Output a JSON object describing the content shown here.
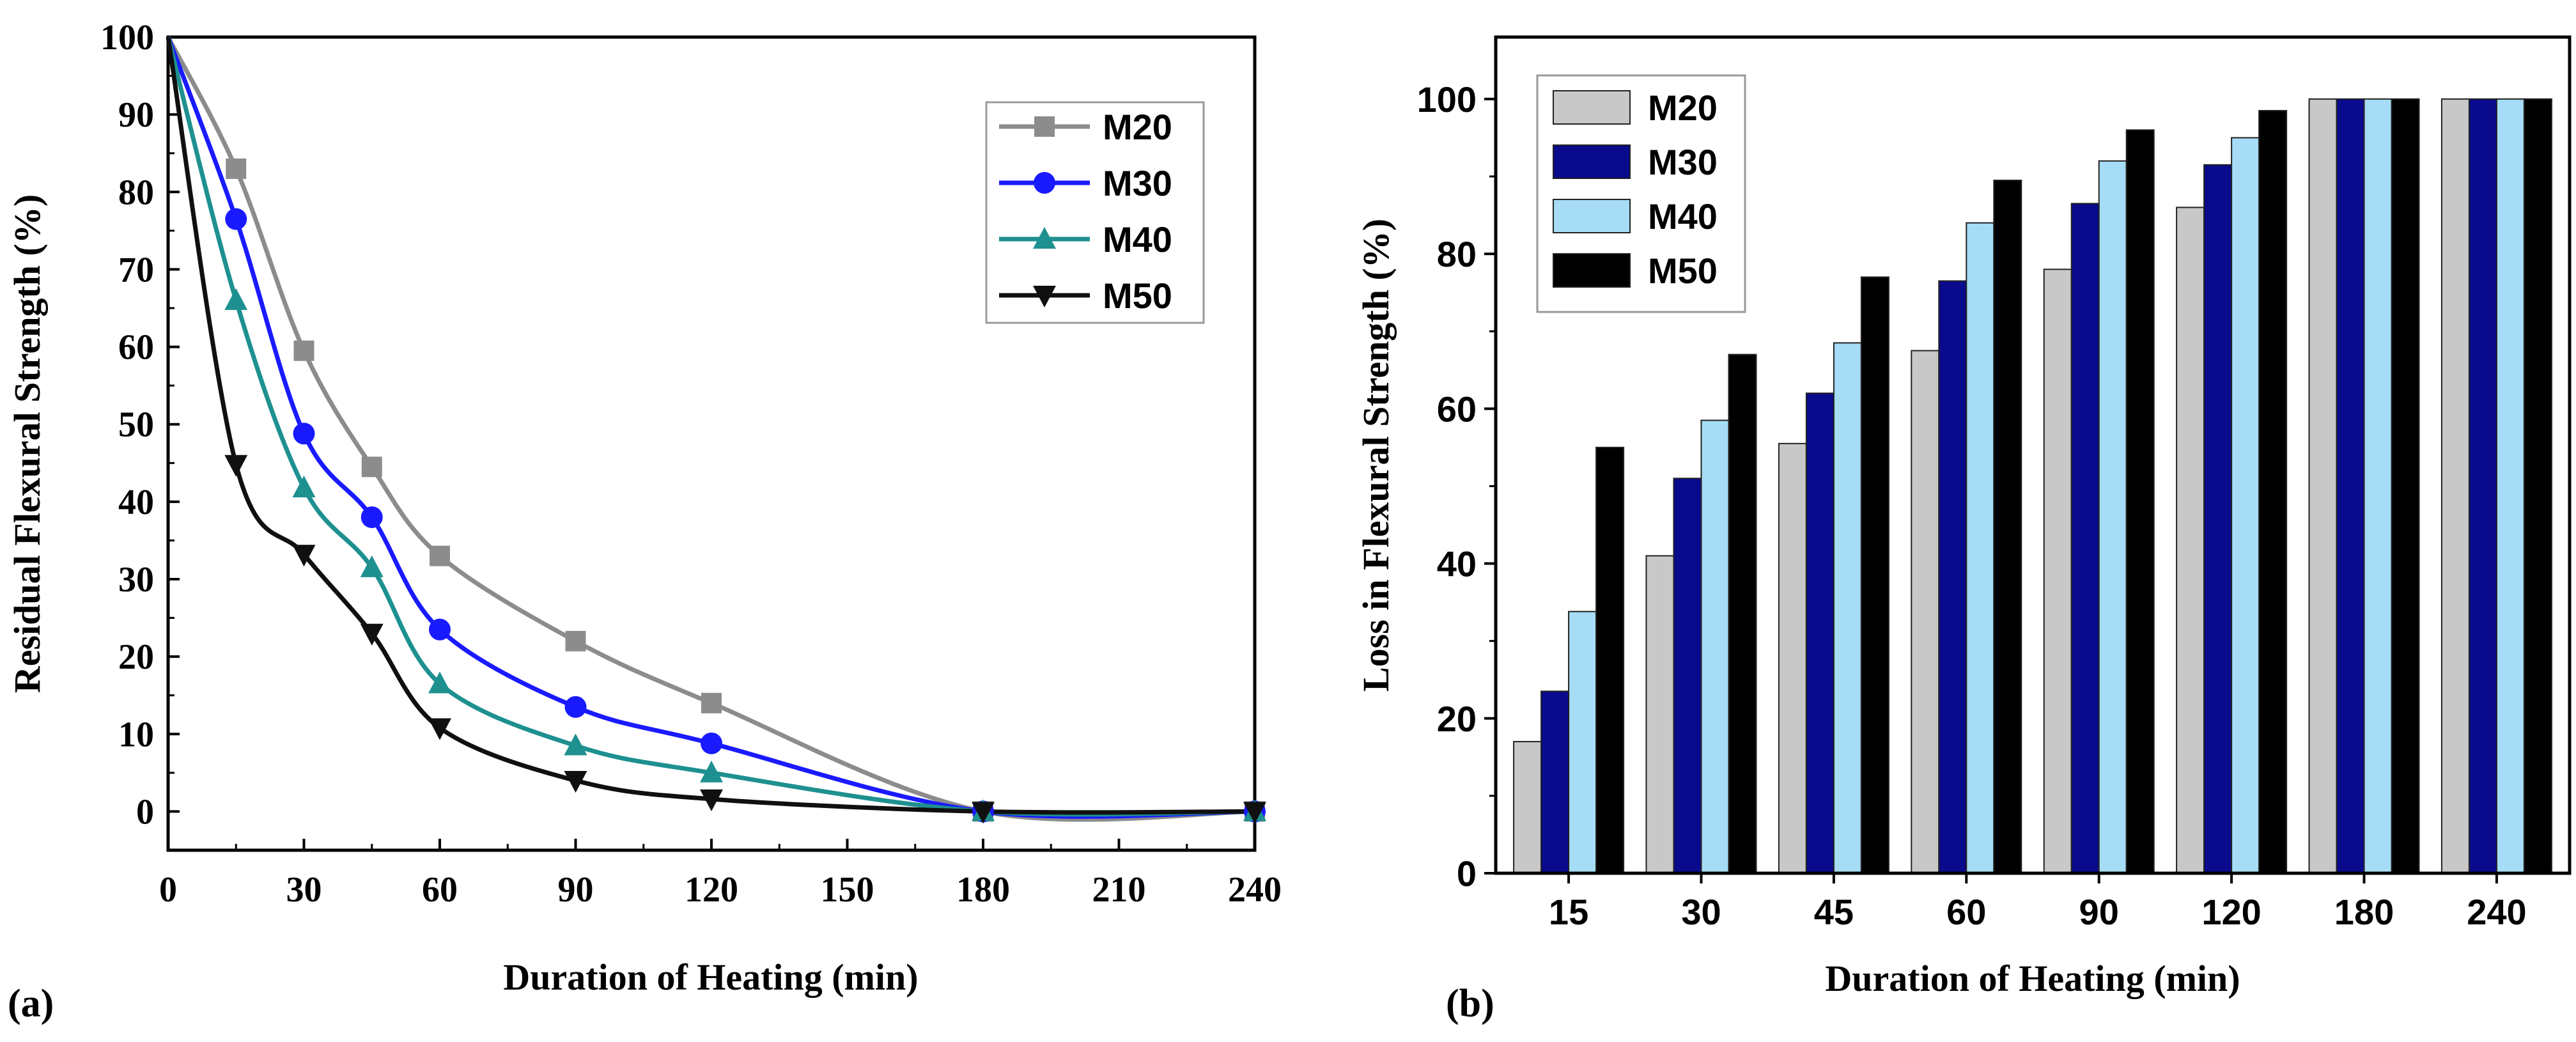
{
  "figure": {
    "panel_a_label": "(a)",
    "panel_b_label": "(b)"
  },
  "chart_data": [
    {
      "type": "line",
      "xlabel": "Duration of Heating (min)",
      "ylabel": "Residual Flexural Strength (%)",
      "xlim": [
        0,
        240
      ],
      "ylim": [
        -5,
        100
      ],
      "xticks": [
        0,
        30,
        60,
        90,
        120,
        150,
        180,
        210,
        240
      ],
      "yticks": [
        0,
        10,
        20,
        30,
        40,
        50,
        60,
        70,
        80,
        90,
        100
      ],
      "legend_position": "top-right",
      "series": [
        {
          "name": "M20",
          "color": "#8c8c8c",
          "marker": "square",
          "x": [
            0,
            15,
            30,
            45,
            60,
            90,
            120,
            180,
            240
          ],
          "y": [
            100,
            83,
            59.5,
            44.5,
            33,
            22,
            14,
            0,
            0
          ]
        },
        {
          "name": "M30",
          "color": "#1a1aff",
          "marker": "circle",
          "x": [
            0,
            15,
            30,
            45,
            60,
            90,
            120,
            180,
            240
          ],
          "y": [
            100,
            76.5,
            48.8,
            38,
            23.5,
            13.5,
            8.8,
            0,
            0
          ]
        },
        {
          "name": "M40",
          "color": "#1e9090",
          "marker": "triangle-up",
          "x": [
            0,
            15,
            30,
            45,
            60,
            90,
            120,
            180,
            240
          ],
          "y": [
            100,
            66,
            41.8,
            31.5,
            16.5,
            8.5,
            5,
            0,
            0
          ]
        },
        {
          "name": "M50",
          "color": "#101010",
          "marker": "triangle-down",
          "x": [
            0,
            15,
            30,
            45,
            60,
            90,
            120,
            180,
            240
          ],
          "y": [
            100,
            44.8,
            33.2,
            23,
            10.8,
            4,
            1.6,
            0,
            0
          ]
        }
      ]
    },
    {
      "type": "bar",
      "xlabel": "Duration of Heating (min)",
      "ylabel": "Loss in Flexural Strength (%)",
      "ylim": [
        0,
        108
      ],
      "yticks": [
        0,
        20,
        40,
        60,
        80,
        100
      ],
      "categories": [
        "15",
        "30",
        "45",
        "60",
        "90",
        "120",
        "180",
        "240"
      ],
      "legend_position": "top-left",
      "series": [
        {
          "name": "M20",
          "color": "#c8c8c8",
          "values": [
            17,
            41,
            55.5,
            67.5,
            78,
            86,
            100,
            100
          ]
        },
        {
          "name": "M30",
          "color": "#0a0a8c",
          "values": [
            23.5,
            51,
            62,
            76.5,
            86.5,
            91.5,
            100,
            100
          ]
        },
        {
          "name": "M40",
          "color": "#a6dcf5",
          "values": [
            33.8,
            58.5,
            68.5,
            84,
            92,
            95,
            100,
            100
          ]
        },
        {
          "name": "M50",
          "color": "#000000",
          "values": [
            55,
            67,
            77,
            89.5,
            96,
            98.5,
            100,
            100
          ]
        }
      ]
    }
  ]
}
